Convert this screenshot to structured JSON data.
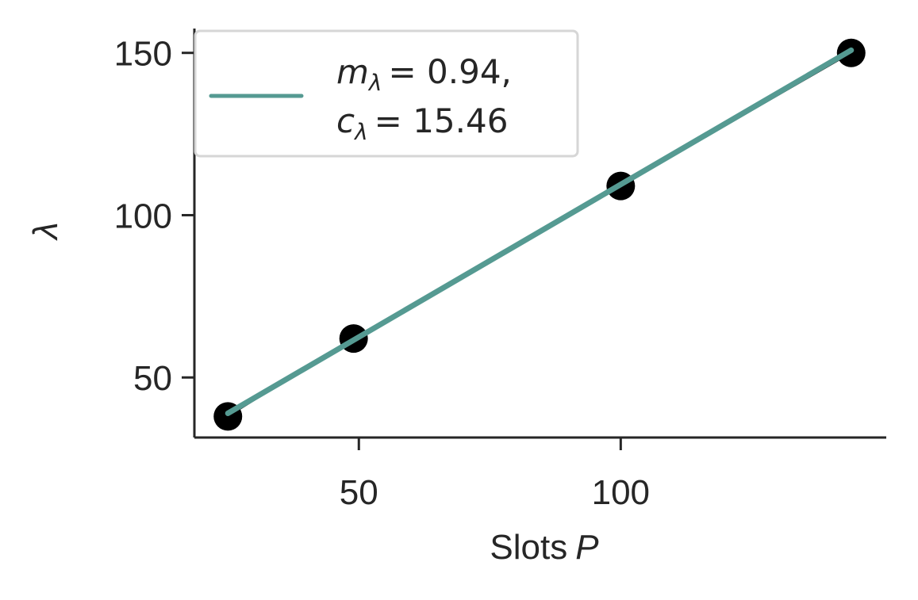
{
  "chart_data": {
    "type": "scatter",
    "xlabel": "Slots",
    "xlabel_var": "P",
    "ylabel": "λ",
    "xlim": [
      18.6,
      150.7
    ],
    "ylim": [
      31.5,
      157.5
    ],
    "xticks": [
      50,
      100
    ],
    "yticks": [
      50,
      100,
      150
    ],
    "grid": false,
    "legend_location": "upper-left",
    "series": [
      {
        "kind": "points",
        "color": "#000000",
        "x": [
          25,
          49,
          100,
          144
        ],
        "y": [
          38,
          62,
          109,
          150
        ]
      },
      {
        "kind": "fit-line",
        "color": "#559A92",
        "x": [
          25,
          144
        ],
        "y": [
          38.96,
          150.82
        ],
        "legend": {
          "line1_var": "m",
          "line1_sub": "λ",
          "line1_value": "= 0.94,",
          "line2_var": "c",
          "line2_sub": "λ",
          "line2_value": "= 15.46"
        }
      },
      {
        "kind": "connect-line",
        "color": "#000000",
        "x": [
          25,
          49,
          100,
          144
        ],
        "y": [
          38,
          62,
          109,
          150
        ]
      }
    ]
  }
}
